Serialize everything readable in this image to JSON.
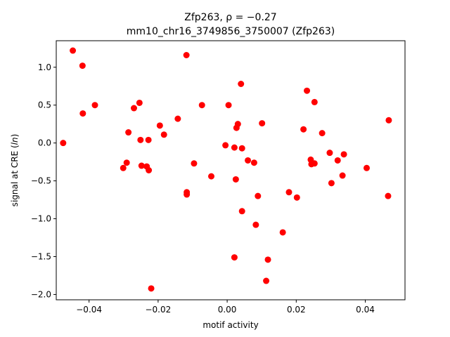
{
  "chart_data": {
    "type": "scatter",
    "title_line1": "Zfp263, ρ = −0.27",
    "title_line2": "mm10_chr16_3749856_3750007 (Zfp263)",
    "xlabel": "motif activity",
    "ylabel": "signal at CRE (ln)",
    "xlim": [
      -0.0495,
      0.0515
    ],
    "ylim": [
      -2.07,
      1.35
    ],
    "xticks": [
      -0.04,
      -0.02,
      0.0,
      0.02,
      0.04
    ],
    "xtick_labels": [
      "−0.04",
      "−0.02",
      "0.00",
      "0.02",
      "0.04"
    ],
    "yticks": [
      -2.0,
      -1.5,
      -1.0,
      -0.5,
      0.0,
      0.5,
      1.0
    ],
    "ytick_labels": [
      "−2.0",
      "−1.5",
      "−1.0",
      "−0.5",
      "0.0",
      "0.5",
      "1.0"
    ],
    "grid": false,
    "marker_color": "#ff0000",
    "points": [
      [
        -0.0475,
        0.0
      ],
      [
        -0.0447,
        1.22
      ],
      [
        -0.0419,
        1.02
      ],
      [
        -0.0418,
        0.39
      ],
      [
        -0.0383,
        0.5
      ],
      [
        -0.0301,
        -0.33
      ],
      [
        -0.0291,
        -0.26
      ],
      [
        -0.0286,
        0.14
      ],
      [
        -0.027,
        0.46
      ],
      [
        -0.0254,
        0.53
      ],
      [
        -0.0251,
        0.04
      ],
      [
        -0.0248,
        -0.3
      ],
      [
        -0.0233,
        -0.31
      ],
      [
        -0.0228,
        0.04
      ],
      [
        -0.0227,
        -0.36
      ],
      [
        -0.022,
        -1.92
      ],
      [
        -0.0195,
        0.23
      ],
      [
        -0.0183,
        0.11
      ],
      [
        -0.0143,
        0.32
      ],
      [
        -0.0118,
        1.16
      ],
      [
        -0.0117,
        -0.65
      ],
      [
        -0.0117,
        -0.68
      ],
      [
        -0.0096,
        -0.27
      ],
      [
        -0.0073,
        0.5
      ],
      [
        -0.0046,
        -0.44
      ],
      [
        -0.0005,
        -0.03
      ],
      [
        0.0004,
        0.5
      ],
      [
        0.0021,
        -0.06
      ],
      [
        0.0021,
        -1.51
      ],
      [
        0.0025,
        -0.48
      ],
      [
        0.0027,
        0.2
      ],
      [
        0.0031,
        0.25
      ],
      [
        0.004,
        0.78
      ],
      [
        0.0043,
        -0.07
      ],
      [
        0.0043,
        -0.9
      ],
      [
        0.006,
        -0.23
      ],
      [
        0.0078,
        -0.26
      ],
      [
        0.0083,
        -1.08
      ],
      [
        0.0089,
        -0.7
      ],
      [
        0.0101,
        0.26
      ],
      [
        0.0113,
        -1.82
      ],
      [
        0.0118,
        -1.54
      ],
      [
        0.0161,
        -1.18
      ],
      [
        0.0179,
        -0.65
      ],
      [
        0.0202,
        -0.72
      ],
      [
        0.0221,
        0.18
      ],
      [
        0.0231,
        0.69
      ],
      [
        0.0242,
        -0.22
      ],
      [
        0.0244,
        -0.28
      ],
      [
        0.0253,
        0.54
      ],
      [
        0.0253,
        -0.27
      ],
      [
        0.0275,
        0.13
      ],
      [
        0.0297,
        -0.13
      ],
      [
        0.0302,
        -0.53
      ],
      [
        0.032,
        -0.23
      ],
      [
        0.0334,
        -0.43
      ],
      [
        0.0338,
        -0.15
      ],
      [
        0.0404,
        -0.33
      ],
      [
        0.0466,
        -0.7
      ],
      [
        0.0468,
        0.3
      ]
    ]
  }
}
